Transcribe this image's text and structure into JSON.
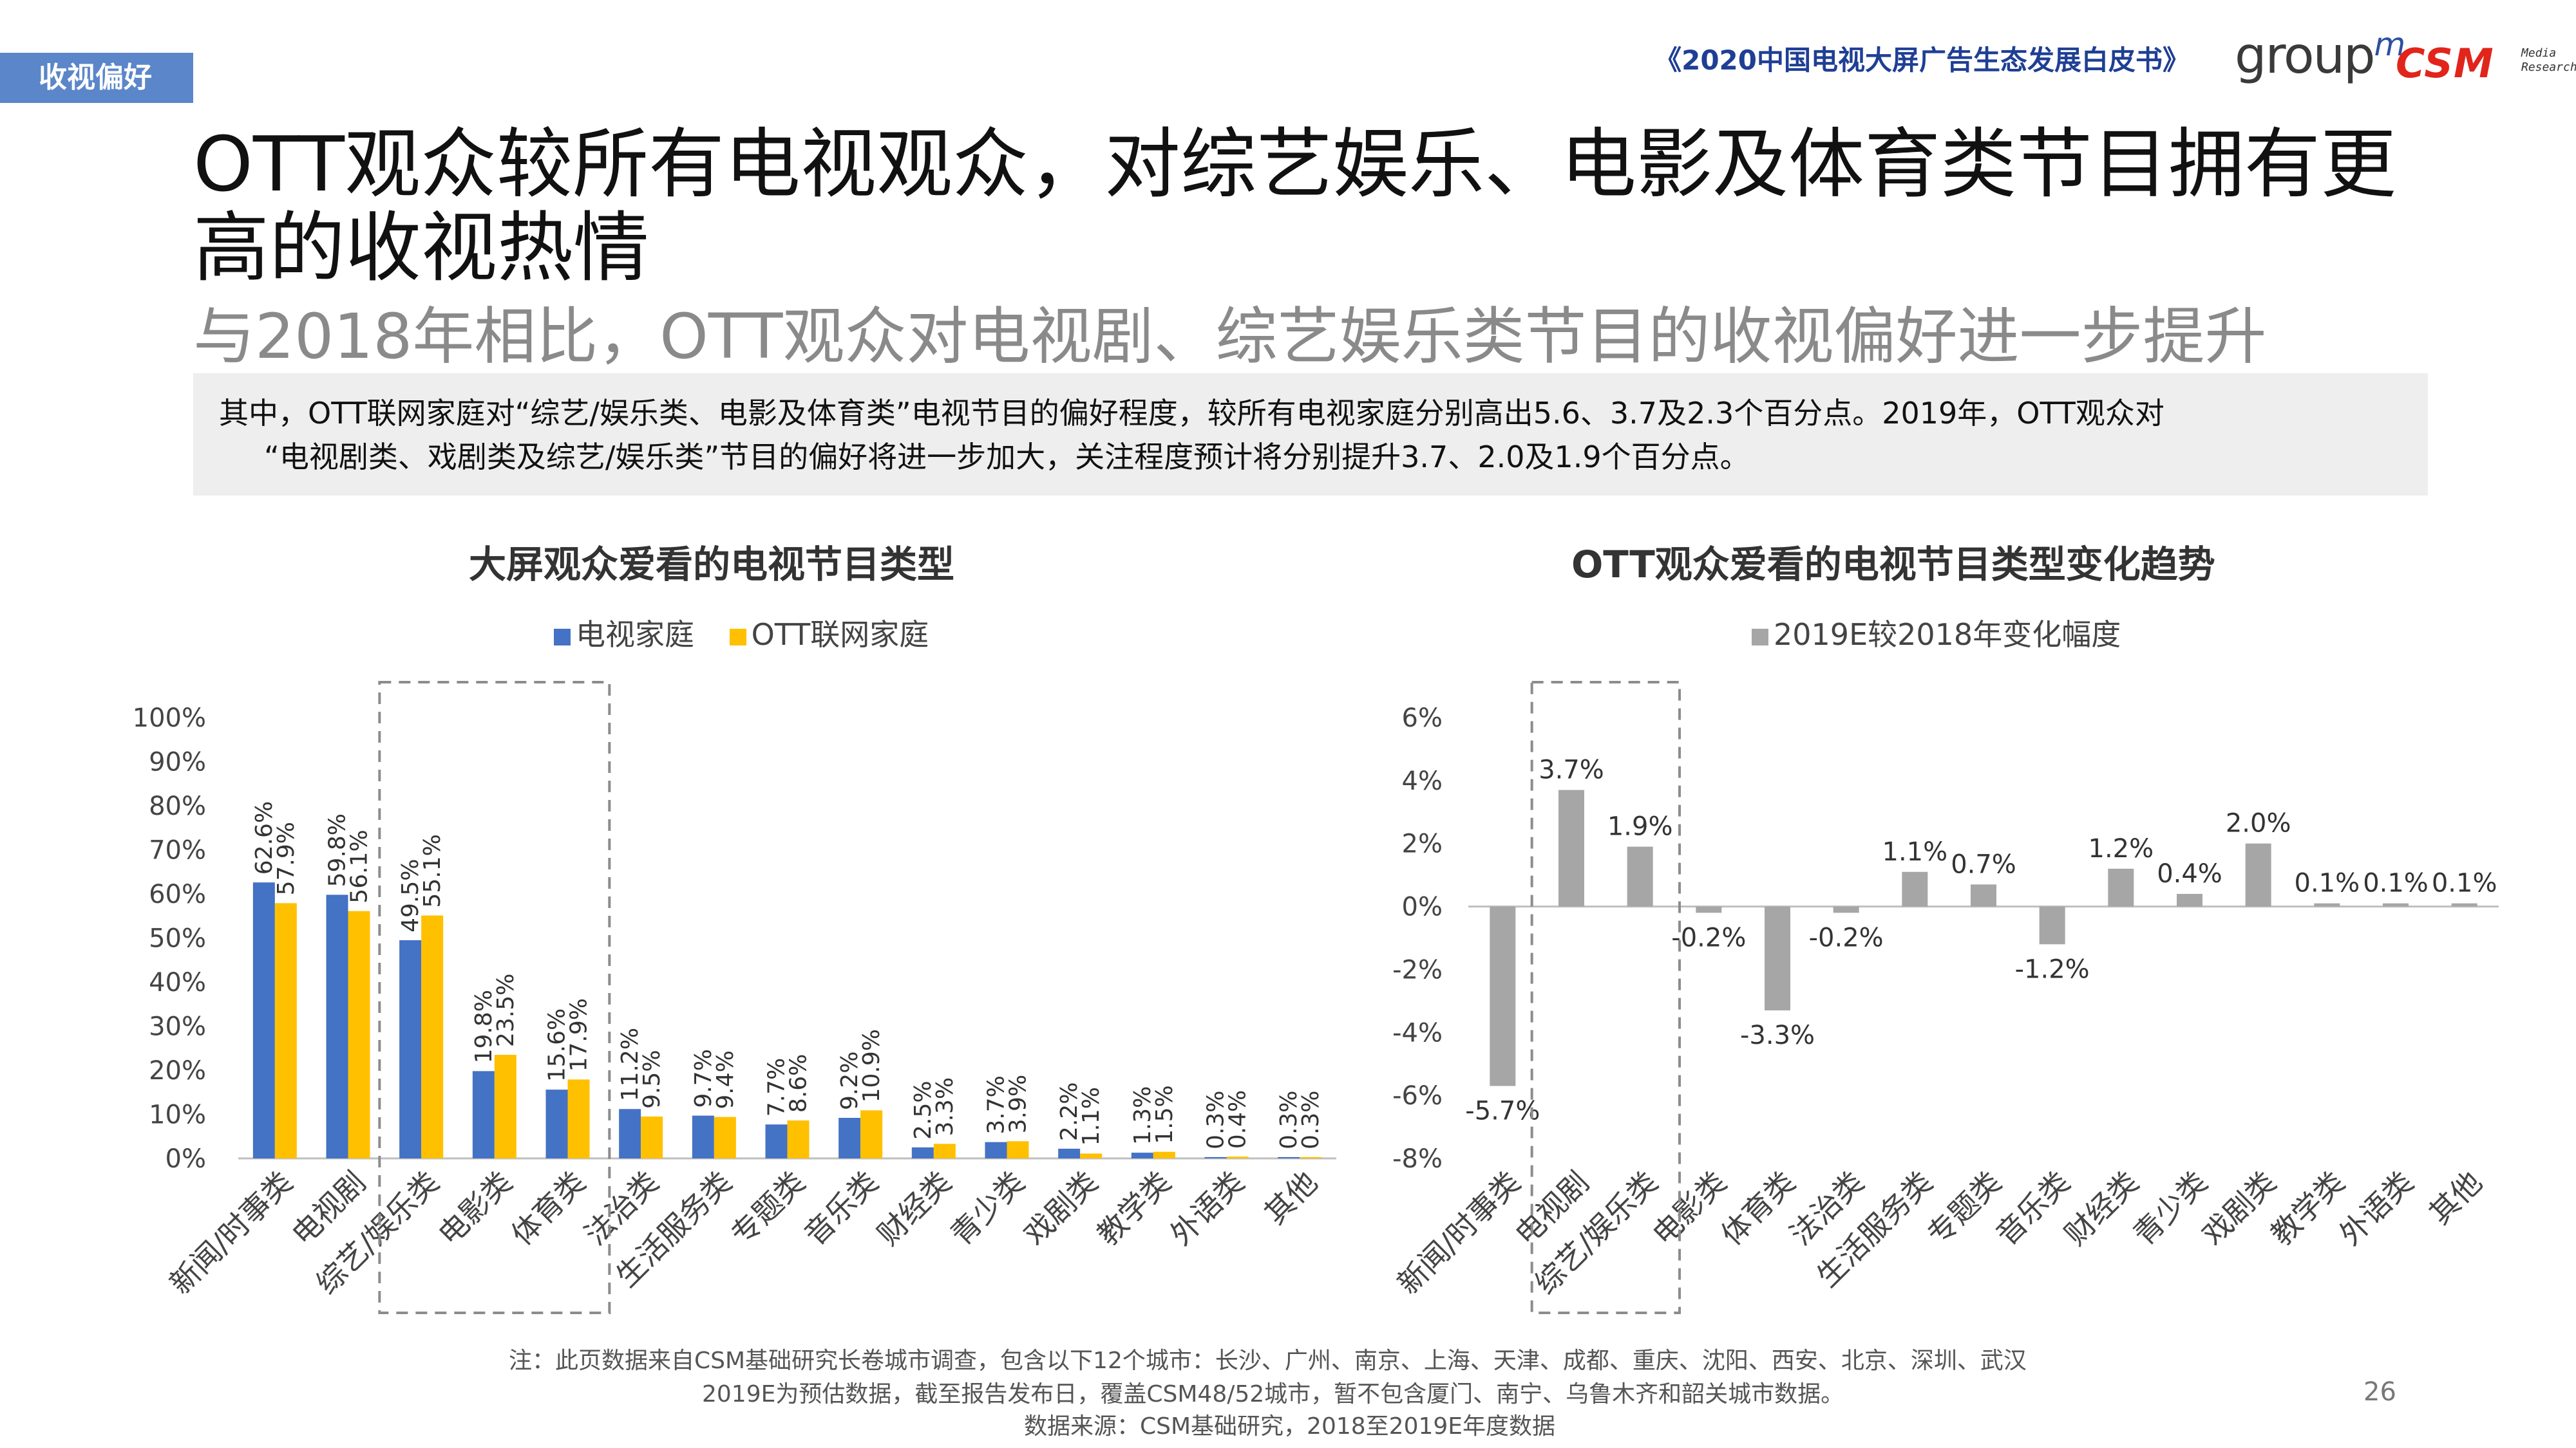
{
  "header": {
    "tag": "收视偏好",
    "report_title": "《2020中国电视大屏广告生态发展白皮书》",
    "logo_group": "group",
    "logo_group_sup": "m",
    "logo_csm": "CSM",
    "logo_csm_sub1": "Media",
    "logo_csm_sub2": "Research"
  },
  "headline_line1": "OTT观众较所有电视观众，对综艺娱乐、电影及体育类节目拥有更",
  "headline_line2": "高的收视热情",
  "subheadline": "与2018年相比，OTT观众对电视剧、综艺娱乐类节目的收视偏好进一步提升",
  "summary_line1": "其中，OTT联网家庭对“综艺/娱乐类、电影及体育类”电视节目的偏好程度，较所有电视家庭分别高出5.6、3.7及2.3个百分点。2019年，OTT观众对",
  "summary_line2": "“电视剧类、戏剧类及综艺/娱乐类”节目的偏好将进一步加大，关注程度预计将分别提升3.7、2.0及1.9个百分点。",
  "chart_data": [
    {
      "type": "bar",
      "title": "大屏观众爱看的电视节目类型",
      "categories": [
        "新闻/时事类",
        "电视剧",
        "综艺/娱乐类",
        "电影类",
        "体育类",
        "法治类",
        "生活服务类",
        "专题类",
        "音乐类",
        "财经类",
        "青少类",
        "戏剧类",
        "教学类",
        "外语类",
        "其他"
      ],
      "series": [
        {
          "name": "电视家庭",
          "color": "#4472c4",
          "values": [
            62.6,
            59.8,
            49.5,
            19.8,
            15.6,
            11.2,
            9.7,
            7.7,
            9.2,
            2.5,
            3.7,
            2.2,
            1.3,
            0.3,
            0.3
          ]
        },
        {
          "name": "OTT联网家庭",
          "color": "#ffc000",
          "values": [
            57.9,
            56.1,
            55.1,
            23.5,
            17.9,
            9.5,
            9.4,
            8.6,
            10.9,
            3.3,
            3.9,
            1.1,
            1.5,
            0.4,
            0.3
          ]
        }
      ],
      "ylim": [
        0,
        100
      ],
      "yticks": [
        "0%",
        "10%",
        "20%",
        "30%",
        "40%",
        "50%",
        "60%",
        "70%",
        "80%",
        "90%",
        "100%"
      ],
      "unit": "%",
      "legend": "top",
      "highlight_categories": [
        "综艺/娱乐类",
        "电影类",
        "体育类"
      ]
    },
    {
      "type": "bar",
      "title": "OTT观众爱看的电视节目类型变化趋势",
      "categories": [
        "新闻/时事类",
        "电视剧",
        "综艺/娱乐类",
        "电影类",
        "体育类",
        "法治类",
        "生活服务类",
        "专题类",
        "音乐类",
        "财经类",
        "青少类",
        "戏剧类",
        "教学类",
        "外语类",
        "其他"
      ],
      "series": [
        {
          "name": "2019E较2018年变化幅度",
          "color": "#a6a6a6",
          "values": [
            -5.7,
            3.7,
            1.9,
            -0.2,
            -3.3,
            -0.2,
            1.1,
            0.7,
            -1.2,
            1.2,
            0.4,
            2.0,
            0.1,
            0.1,
            0.1
          ]
        }
      ],
      "ylim": [
        -8,
        6
      ],
      "yticks": [
        "-8%",
        "-6%",
        "-4%",
        "-2%",
        "0%",
        "2%",
        "4%",
        "6%"
      ],
      "unit": "%",
      "legend": "top",
      "highlight_categories": [
        "电视剧",
        "综艺/娱乐类"
      ]
    }
  ],
  "notes": {
    "line1": "注：此页数据来自CSM基础研究长卷城市调查，包含以下12个城市：长沙、广州、南京、上海、天津、成都、重庆、沈阳、西安、北京、深圳、武汉",
    "line2": "2019E为预估数据，截至报告发布日，覆盖CSM48/52城市，暂不包含厦门、南宁、乌鲁木齐和韶关城市数据。",
    "line3": "数据来源：CSM基础研究，2018至2019E年度数据"
  },
  "page_number": "26"
}
